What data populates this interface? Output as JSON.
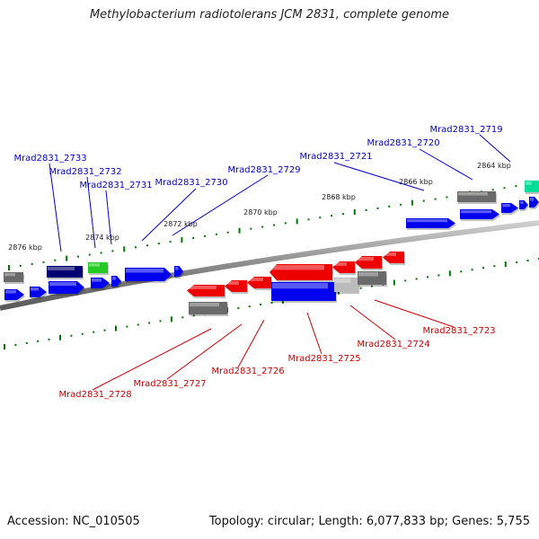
{
  "title": "Methylobacterium radiotolerans JCM 2831, complete genome",
  "footer": {
    "accession": "Accession: NC_010505",
    "summary": "Topology: circular; Length: 6,077,833 bp; Genes: 5,755"
  },
  "colors": {
    "forward_gene": "#0000ee",
    "reverse_gene": "#ee0000",
    "gray_feature": "#6a6a6a",
    "light_gray_feature": "#bbbbbb",
    "navy_feature": "#000070",
    "green_feature": "#22cc22",
    "teal_feature": "#00dd99",
    "tick": "#007700",
    "backbone": "#888888",
    "forward_label": "#0000cc",
    "reverse_label": "#cc0000"
  },
  "scale_labels": [
    "2876 kbp",
    "2874 kbp",
    "2872 kbp",
    "2870 kbp",
    "2868 kbp",
    "2866 kbp",
    "2864 kbp"
  ],
  "forward_labels": [
    "Mrad2831_2733",
    "Mrad2831_2732",
    "Mrad2831_2731",
    "Mrad2831_2730",
    "Mrad2831_2729",
    "Mrad2831_2721",
    "Mrad2831_2720",
    "Mrad2831_2719"
  ],
  "reverse_labels": [
    "Mrad2831_2728",
    "Mrad2831_2727",
    "Mrad2831_2726",
    "Mrad2831_2725",
    "Mrad2831_2724",
    "Mrad2831_2723"
  ]
}
